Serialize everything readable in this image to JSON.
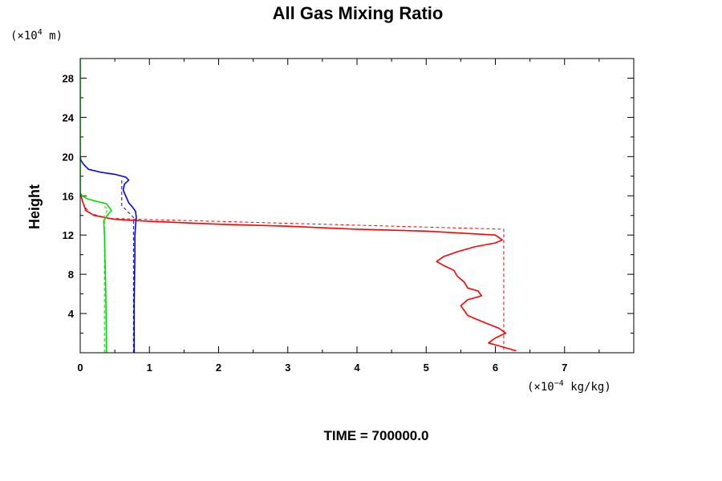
{
  "chart_data": {
    "type": "line",
    "title": "All Gas Mixing Ratio",
    "ylabel": "Height",
    "y_unit_prefix": "(×10",
    "y_unit_exp": "4",
    "y_unit_suffix": " m)",
    "x_unit_prefix": "(×10",
    "x_unit_exp": "−4",
    "x_unit_suffix": " kg/kg)",
    "footer": "TIME = 700000.0",
    "xlim": [
      0,
      8
    ],
    "ylim": [
      0,
      30
    ],
    "x_ticks": [
      0,
      1,
      2,
      3,
      4,
      5,
      6,
      7
    ],
    "y_ticks": [
      4,
      8,
      12,
      16,
      20,
      24,
      28
    ],
    "grid": false,
    "series": [
      {
        "color": "#ff0000",
        "style": "solid",
        "points": [
          [
            6.3,
            0.2
          ],
          [
            6.05,
            0.7
          ],
          [
            5.9,
            1.0
          ],
          [
            6.0,
            1.5
          ],
          [
            6.15,
            2.0
          ],
          [
            6.05,
            2.5
          ],
          [
            5.8,
            3.2
          ],
          [
            5.6,
            3.8
          ],
          [
            5.5,
            4.8
          ],
          [
            5.6,
            5.4
          ],
          [
            5.8,
            5.8
          ],
          [
            5.75,
            6.3
          ],
          [
            5.6,
            6.6
          ],
          [
            5.55,
            7.2
          ],
          [
            5.45,
            7.8
          ],
          [
            5.4,
            8.4
          ],
          [
            5.25,
            8.9
          ],
          [
            5.15,
            9.3
          ],
          [
            5.25,
            9.8
          ],
          [
            5.45,
            10.3
          ],
          [
            5.7,
            10.8
          ],
          [
            6.0,
            11.2
          ],
          [
            6.1,
            11.5
          ],
          [
            6.0,
            12.0
          ],
          [
            5.0,
            12.4
          ],
          [
            4.0,
            12.6
          ],
          [
            3.0,
            12.9
          ],
          [
            2.0,
            13.1
          ],
          [
            1.0,
            13.4
          ],
          [
            0.5,
            13.6
          ],
          [
            0.2,
            14.0
          ],
          [
            0.08,
            14.5
          ],
          [
            0.03,
            15.5
          ],
          [
            0.01,
            16.1
          ]
        ]
      },
      {
        "color": "#ff0000",
        "style": "dashed",
        "points": [
          [
            6.12,
            0.3
          ],
          [
            6.12,
            11.5
          ],
          [
            6.12,
            12.6
          ],
          [
            0.4,
            13.7
          ],
          [
            0.15,
            14.2
          ],
          [
            0.05,
            15.0
          ]
        ]
      },
      {
        "color": "#0000ff",
        "style": "solid",
        "points": [
          [
            0.78,
            0.0
          ],
          [
            0.78,
            5.0
          ],
          [
            0.79,
            10.0
          ],
          [
            0.79,
            12.0
          ],
          [
            0.8,
            13.0
          ],
          [
            0.81,
            13.8
          ],
          [
            0.8,
            14.4
          ],
          [
            0.76,
            14.8
          ],
          [
            0.7,
            15.3
          ],
          [
            0.65,
            16.1
          ],
          [
            0.62,
            16.6
          ],
          [
            0.64,
            17.2
          ],
          [
            0.7,
            17.6
          ],
          [
            0.66,
            17.9
          ],
          [
            0.5,
            18.2
          ],
          [
            0.3,
            18.4
          ],
          [
            0.12,
            18.7
          ],
          [
            0.05,
            19.2
          ],
          [
            0.01,
            19.6
          ],
          [
            0.0,
            20.0
          ]
        ]
      },
      {
        "color": "#0000ff",
        "style": "dashed",
        "points": [
          [
            0.77,
            0.0
          ],
          [
            0.77,
            13.8
          ],
          [
            0.6,
            15.0
          ],
          [
            0.6,
            16.6
          ],
          [
            0.6,
            17.6
          ]
        ]
      },
      {
        "color": "#00dd00",
        "style": "solid",
        "points": [
          [
            0.38,
            0.0
          ],
          [
            0.37,
            6.0
          ],
          [
            0.35,
            12.0
          ],
          [
            0.34,
            13.5
          ],
          [
            0.4,
            14.1
          ],
          [
            0.45,
            14.5
          ],
          [
            0.38,
            15.2
          ],
          [
            0.2,
            15.5
          ],
          [
            0.1,
            15.7
          ],
          [
            0.03,
            16.0
          ],
          [
            0.0,
            16.3
          ],
          [
            0.0,
            30.0
          ]
        ]
      },
      {
        "color": "#00dd00",
        "style": "dashed",
        "points": [
          [
            0.35,
            0.0
          ],
          [
            0.35,
            13.5
          ],
          [
            0.34,
            13.9
          ],
          [
            0.4,
            14.6
          ],
          [
            0.32,
            15.1
          ]
        ]
      }
    ]
  }
}
